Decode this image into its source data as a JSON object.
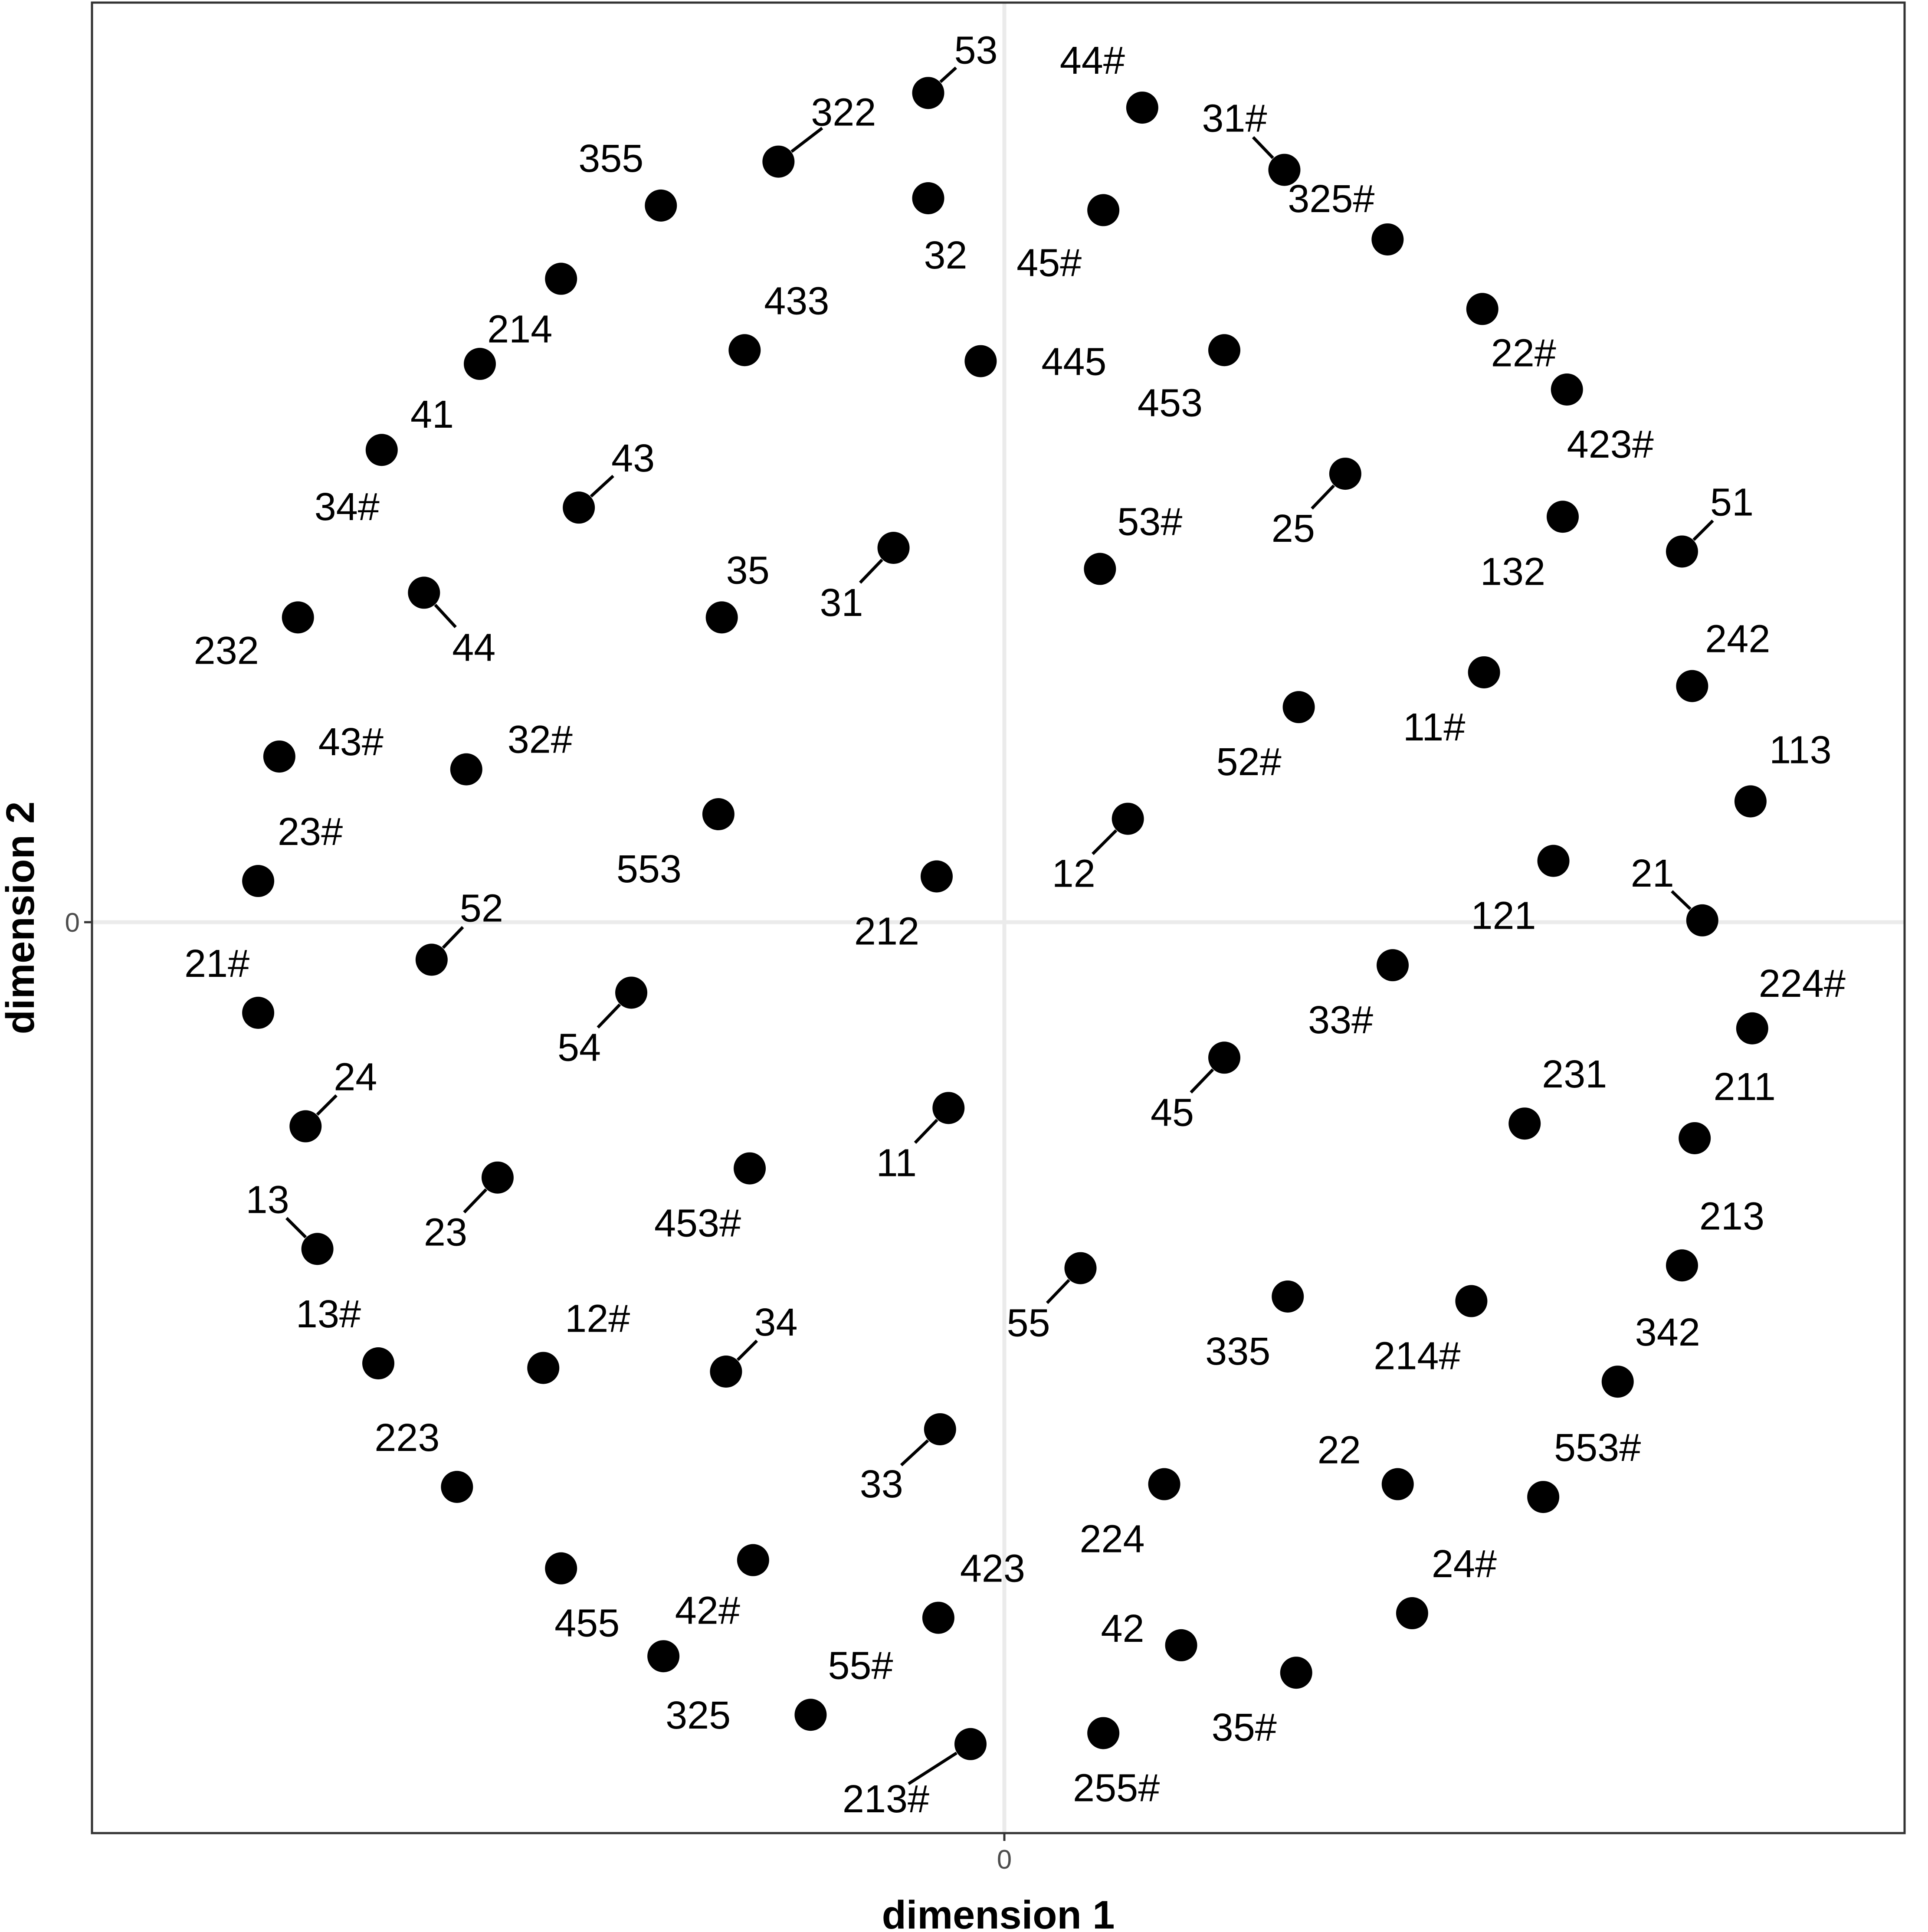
{
  "chart_data": {
    "type": "scatter",
    "xlabel": "dimension 1",
    "ylabel": "dimension 2",
    "x_ticks": [
      "0"
    ],
    "y_ticks": [
      "0"
    ],
    "grid": "zero lines only",
    "legend": "none",
    "colors": {
      "point": "#000000",
      "zero_line": "#ebebeb",
      "frame": "#333333"
    },
    "xlim": [
      -1.0,
      1.0
    ],
    "ylim": [
      -1.0,
      1.0
    ],
    "points": [
      {
        "label": "53",
        "x": -0.09,
        "y": 0.906
      },
      {
        "label": "44#",
        "x": 0.163,
        "y": 0.89
      },
      {
        "label": "322",
        "x": -0.267,
        "y": 0.831
      },
      {
        "label": "31#",
        "x": 0.331,
        "y": 0.822
      },
      {
        "label": "355",
        "x": -0.406,
        "y": 0.783
      },
      {
        "label": "32",
        "x": -0.09,
        "y": 0.791
      },
      {
        "label": "45#",
        "x": 0.117,
        "y": 0.778
      },
      {
        "label": "325#",
        "x": 0.453,
        "y": 0.746
      },
      {
        "label": "214",
        "x": -0.524,
        "y": 0.703
      },
      {
        "label": "22#",
        "x": 0.565,
        "y": 0.67
      },
      {
        "label": "433",
        "x": -0.307,
        "y": 0.625
      },
      {
        "label": "445",
        "x": -0.028,
        "y": 0.613
      },
      {
        "label": "453",
        "x": 0.26,
        "y": 0.625
      },
      {
        "label": "41",
        "x": -0.62,
        "y": 0.61
      },
      {
        "label": "423#",
        "x": 0.665,
        "y": 0.582
      },
      {
        "label": "34#",
        "x": -0.736,
        "y": 0.516
      },
      {
        "label": "43",
        "x": -0.503,
        "y": 0.453
      },
      {
        "label": "25",
        "x": 0.403,
        "y": 0.49
      },
      {
        "label": "132",
        "x": 0.66,
        "y": 0.443
      },
      {
        "label": "51",
        "x": 0.801,
        "y": 0.405
      },
      {
        "label": "31",
        "x": -0.131,
        "y": 0.409
      },
      {
        "label": "53#",
        "x": 0.113,
        "y": 0.386
      },
      {
        "label": "44",
        "x": -0.686,
        "y": 0.36
      },
      {
        "label": "232",
        "x": -0.835,
        "y": 0.333
      },
      {
        "label": "35",
        "x": -0.334,
        "y": 0.333
      },
      {
        "label": "11#",
        "x": 0.567,
        "y": 0.273
      },
      {
        "label": "242",
        "x": 0.813,
        "y": 0.258
      },
      {
        "label": "52#",
        "x": 0.348,
        "y": 0.235
      },
      {
        "label": "43#",
        "x": -0.857,
        "y": 0.181
      },
      {
        "label": "32#",
        "x": -0.636,
        "y": 0.167
      },
      {
        "label": "113",
        "x": 0.882,
        "y": 0.132
      },
      {
        "label": "553",
        "x": -0.338,
        "y": 0.118
      },
      {
        "label": "12",
        "x": 0.146,
        "y": 0.113
      },
      {
        "label": "121",
        "x": 0.649,
        "y": 0.067
      },
      {
        "label": "23#",
        "x": -0.882,
        "y": 0.045
      },
      {
        "label": "212",
        "x": -0.08,
        "y": 0.05
      },
      {
        "label": "21",
        "x": 0.825,
        "y": 0.002
      },
      {
        "label": "52",
        "x": -0.677,
        "y": -0.041
      },
      {
        "label": "33#",
        "x": 0.459,
        "y": -0.047
      },
      {
        "label": "54",
        "x": -0.441,
        "y": -0.077
      },
      {
        "label": "21#",
        "x": -0.882,
        "y": -0.099
      },
      {
        "label": "224#",
        "x": 0.884,
        "y": -0.116
      },
      {
        "label": "45",
        "x": 0.26,
        "y": -0.148
      },
      {
        "label": "11",
        "x": -0.066,
        "y": -0.203
      },
      {
        "label": "24",
        "x": -0.826,
        "y": -0.223
      },
      {
        "label": "231",
        "x": 0.615,
        "y": -0.22
      },
      {
        "label": "211",
        "x": 0.816,
        "y": -0.236
      },
      {
        "label": "453#",
        "x": -0.301,
        "y": -0.269
      },
      {
        "label": "23",
        "x": -0.599,
        "y": -0.279
      },
      {
        "label": "13",
        "x": -0.812,
        "y": -0.357
      },
      {
        "label": "213",
        "x": 0.801,
        "y": -0.375
      },
      {
        "label": "55",
        "x": 0.09,
        "y": -0.378
      },
      {
        "label": "335",
        "x": 0.335,
        "y": -0.409
      },
      {
        "label": "214#",
        "x": 0.552,
        "y": -0.414
      },
      {
        "label": "13#",
        "x": -0.74,
        "y": -0.482
      },
      {
        "label": "12#",
        "x": -0.545,
        "y": -0.487
      },
      {
        "label": "34",
        "x": -0.329,
        "y": -0.491
      },
      {
        "label": "342",
        "x": 0.725,
        "y": -0.502
      },
      {
        "label": "33",
        "x": -0.076,
        "y": -0.554
      },
      {
        "label": "223",
        "x": -0.647,
        "y": -0.617
      },
      {
        "label": "224",
        "x": 0.189,
        "y": -0.614
      },
      {
        "label": "22",
        "x": 0.465,
        "y": -0.614
      },
      {
        "label": "553#",
        "x": 0.637,
        "y": -0.628
      },
      {
        "label": "455",
        "x": -0.524,
        "y": -0.706
      },
      {
        "label": "42#",
        "x": -0.297,
        "y": -0.697
      },
      {
        "label": "423",
        "x": -0.078,
        "y": -0.76
      },
      {
        "label": "24#",
        "x": 0.482,
        "y": -0.755
      },
      {
        "label": "42",
        "x": 0.209,
        "y": -0.79
      },
      {
        "label": "325",
        "x": -0.403,
        "y": -0.802
      },
      {
        "label": "35#",
        "x": 0.345,
        "y": -0.82
      },
      {
        "label": "55#",
        "x": -0.229,
        "y": -0.866
      },
      {
        "label": "255#",
        "x": 0.117,
        "y": -0.886
      },
      {
        "label": "213#",
        "x": -0.04,
        "y": -0.898
      }
    ]
  }
}
